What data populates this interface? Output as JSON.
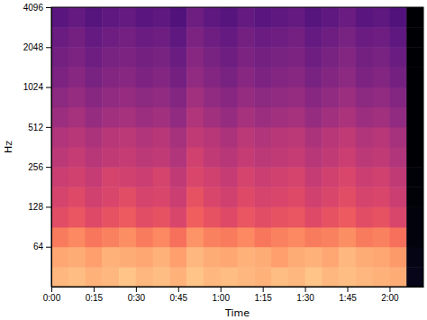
{
  "chart_data": {
    "type": "heatmap",
    "x_label": "Time",
    "y_label": "Hz",
    "log": "y",
    "xlim": [
      0,
      132
    ],
    "ylim": [
      32,
      4096
    ],
    "xticks": [
      {
        "value": 0,
        "label": "0:00"
      },
      {
        "value": 15,
        "label": "0:15"
      },
      {
        "value": 30,
        "label": "0:30"
      },
      {
        "value": 45,
        "label": "0:45"
      },
      {
        "value": 60,
        "label": "1:00"
      },
      {
        "value": 75,
        "label": "1:15"
      },
      {
        "value": 90,
        "label": "1:30"
      },
      {
        "value": 105,
        "label": "1:45"
      },
      {
        "value": 120,
        "label": "2:00"
      }
    ],
    "yticks": [
      64,
      128,
      256,
      512,
      1024,
      2048,
      4096
    ],
    "zlim": [
      -80,
      0
    ],
    "x_edges": [
      0,
      6,
      12,
      18,
      24,
      30,
      36,
      42,
      48,
      54,
      60,
      66,
      72,
      78,
      84,
      90,
      96,
      102,
      108,
      114,
      120,
      126,
      132
    ],
    "y_edges": [
      32,
      45,
      64,
      90,
      128,
      181,
      256,
      362,
      512,
      724,
      1024,
      1448,
      2048,
      2896,
      4096
    ],
    "cells": [
      [
        -12,
        -11,
        -13,
        -12,
        -10,
        -12,
        -11,
        -13,
        -10,
        -12,
        -11,
        -12,
        -13,
        -11,
        -12,
        -10,
        -12,
        -11,
        -12,
        -13,
        -14,
        -76
      ],
      [
        -15,
        -14,
        -16,
        -13,
        -14,
        -15,
        -13,
        -16,
        -12,
        -14,
        -15,
        -13,
        -14,
        -16,
        -14,
        -13,
        -15,
        -12,
        -14,
        -15,
        -17,
        -77
      ],
      [
        -22,
        -20,
        -23,
        -21,
        -19,
        -22,
        -20,
        -24,
        -18,
        -21,
        -22,
        -20,
        -23,
        -21,
        -20,
        -22,
        -21,
        -19,
        -22,
        -21,
        -24,
        -78
      ],
      [
        -31,
        -29,
        -32,
        -30,
        -28,
        -31,
        -30,
        -33,
        -27,
        -30,
        -32,
        -29,
        -31,
        -30,
        -29,
        -32,
        -30,
        -28,
        -31,
        -30,
        -33,
        -78
      ],
      [
        -34,
        -32,
        -35,
        -33,
        -31,
        -34,
        -33,
        -36,
        -30,
        -33,
        -35,
        -32,
        -34,
        -33,
        -32,
        -35,
        -33,
        -31,
        -34,
        -33,
        -36,
        -79
      ],
      [
        -36,
        -35,
        -37,
        -34,
        -35,
        -36,
        -34,
        -38,
        -33,
        -35,
        -37,
        -34,
        -36,
        -35,
        -34,
        -37,
        -35,
        -33,
        -36,
        -35,
        -38,
        -79
      ],
      [
        -39,
        -37,
        -40,
        -38,
        -37,
        -39,
        -38,
        -41,
        -35,
        -38,
        -40,
        -37,
        -39,
        -38,
        -37,
        -40,
        -38,
        -36,
        -39,
        -38,
        -41,
        -80
      ],
      [
        -41,
        -40,
        -42,
        -40,
        -39,
        -41,
        -40,
        -43,
        -38,
        -40,
        -42,
        -39,
        -41,
        -40,
        -39,
        -42,
        -40,
        -38,
        -41,
        -40,
        -43,
        -80
      ],
      [
        -45,
        -43,
        -46,
        -44,
        -43,
        -45,
        -44,
        -47,
        -41,
        -44,
        -46,
        -43,
        -45,
        -44,
        -43,
        -46,
        -44,
        -42,
        -45,
        -44,
        -47,
        -80
      ],
      [
        -48,
        -46,
        -49,
        -47,
        -46,
        -48,
        -47,
        -50,
        -44,
        -47,
        -49,
        -46,
        -48,
        -47,
        -46,
        -49,
        -47,
        -45,
        -48,
        -47,
        -50,
        -80
      ],
      [
        -51,
        -49,
        -52,
        -50,
        -49,
        -51,
        -50,
        -53,
        -47,
        -50,
        -52,
        -49,
        -51,
        -50,
        -49,
        -52,
        -50,
        -48,
        -51,
        -50,
        -53,
        -80
      ],
      [
        -53,
        -51,
        -54,
        -52,
        -51,
        -53,
        -52,
        -55,
        -49,
        -52,
        -54,
        -51,
        -53,
        -52,
        -51,
        -54,
        -52,
        -50,
        -53,
        -52,
        -55,
        -80
      ],
      [
        -55,
        -53,
        -56,
        -54,
        -53,
        -55,
        -54,
        -57,
        -51,
        -54,
        -56,
        -53,
        -55,
        -54,
        -53,
        -56,
        -54,
        -52,
        -55,
        -54,
        -57,
        -80
      ],
      [
        -58,
        -56,
        -59,
        -57,
        -56,
        -58,
        -57,
        -60,
        -54,
        -57,
        -59,
        -56,
        -58,
        -57,
        -56,
        -59,
        -57,
        -55,
        -58,
        -57,
        -60,
        -80
      ]
    ]
  }
}
